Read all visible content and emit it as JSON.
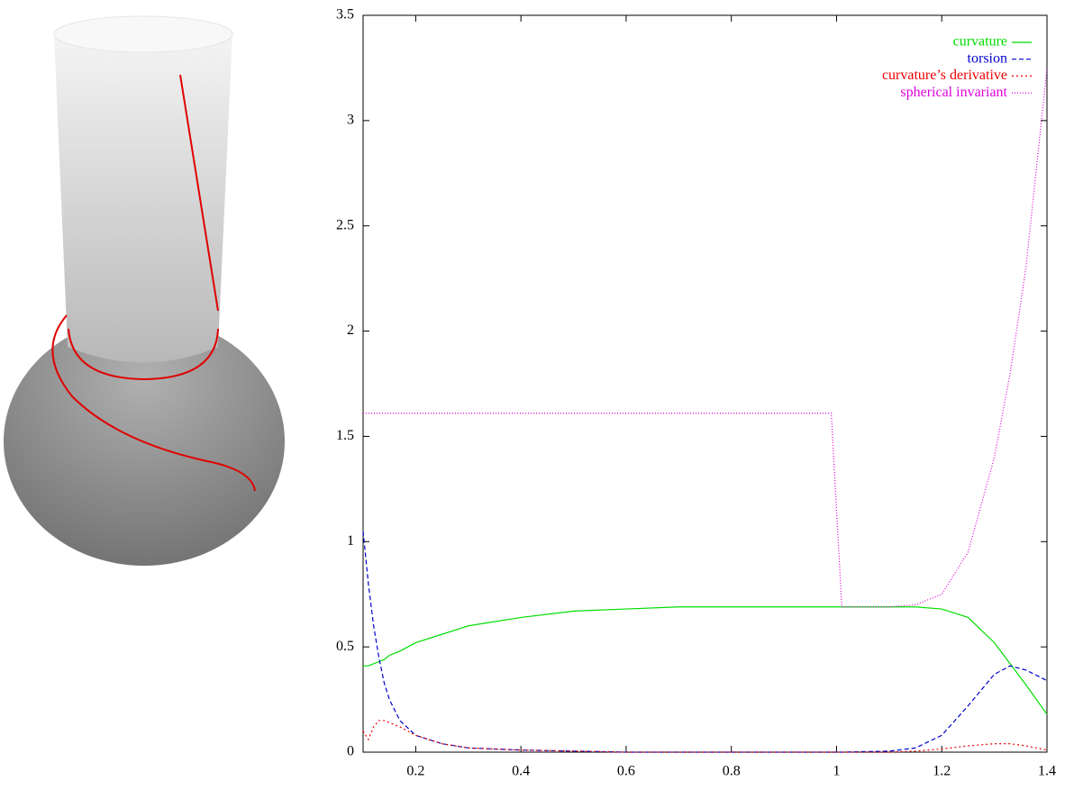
{
  "chart_data": {
    "type": "line",
    "x": [
      0.1,
      0.11,
      0.12,
      0.13,
      0.14,
      0.15,
      0.17,
      0.2,
      0.25,
      0.3,
      0.4,
      0.5,
      0.6,
      0.7,
      0.8,
      0.9,
      0.99,
      1.01,
      1.1,
      1.15,
      1.2,
      1.25,
      1.3,
      1.33,
      1.36,
      1.4
    ],
    "series": [
      {
        "name": "curvature",
        "color": "#00dd00",
        "style": "solid",
        "values": [
          0.41,
          0.41,
          0.42,
          0.43,
          0.44,
          0.46,
          0.48,
          0.52,
          0.56,
          0.6,
          0.64,
          0.67,
          0.68,
          0.69,
          0.69,
          0.69,
          0.69,
          0.69,
          0.69,
          0.69,
          0.68,
          0.64,
          0.52,
          0.42,
          0.32,
          0.18
        ]
      },
      {
        "name": "torsion",
        "color": "#0000cc",
        "style": "dashed",
        "values": [
          1.05,
          0.8,
          0.6,
          0.45,
          0.33,
          0.25,
          0.15,
          0.08,
          0.04,
          0.02,
          0.01,
          0.005,
          0,
          0,
          0,
          0,
          0,
          0,
          0.005,
          0.02,
          0.08,
          0.22,
          0.37,
          0.41,
          0.39,
          0.34
        ]
      },
      {
        "name": "curvature’s derivative",
        "color": "#ee0000",
        "style": "dotted",
        "values": [
          0.1,
          0.06,
          0.12,
          0.15,
          0.15,
          0.14,
          0.12,
          0.08,
          0.04,
          0.02,
          0.01,
          0.005,
          0,
          0,
          0,
          0,
          0,
          0,
          0,
          0.005,
          0.015,
          0.03,
          0.04,
          0.04,
          0.03,
          0.01
        ]
      },
      {
        "name": "spherical invariant",
        "color": "#dd00dd",
        "style": "fine-dotted",
        "values": [
          1.61,
          1.61,
          1.61,
          1.61,
          1.61,
          1.61,
          1.61,
          1.61,
          1.61,
          1.61,
          1.61,
          1.61,
          1.61,
          1.61,
          1.61,
          1.61,
          1.61,
          0.69,
          0.69,
          0.7,
          0.75,
          0.95,
          1.4,
          1.8,
          2.3,
          3.25
        ]
      }
    ],
    "xlim": [
      0.1,
      1.4
    ],
    "xticks": [
      0.2,
      0.4,
      0.6,
      0.8,
      1,
      1.2,
      1.4
    ],
    "ylim": [
      0,
      3.5
    ],
    "yticks": [
      0,
      0.5,
      1,
      1.5,
      2,
      2.5,
      3,
      3.5
    ],
    "legend": "top-right",
    "grid": false
  }
}
